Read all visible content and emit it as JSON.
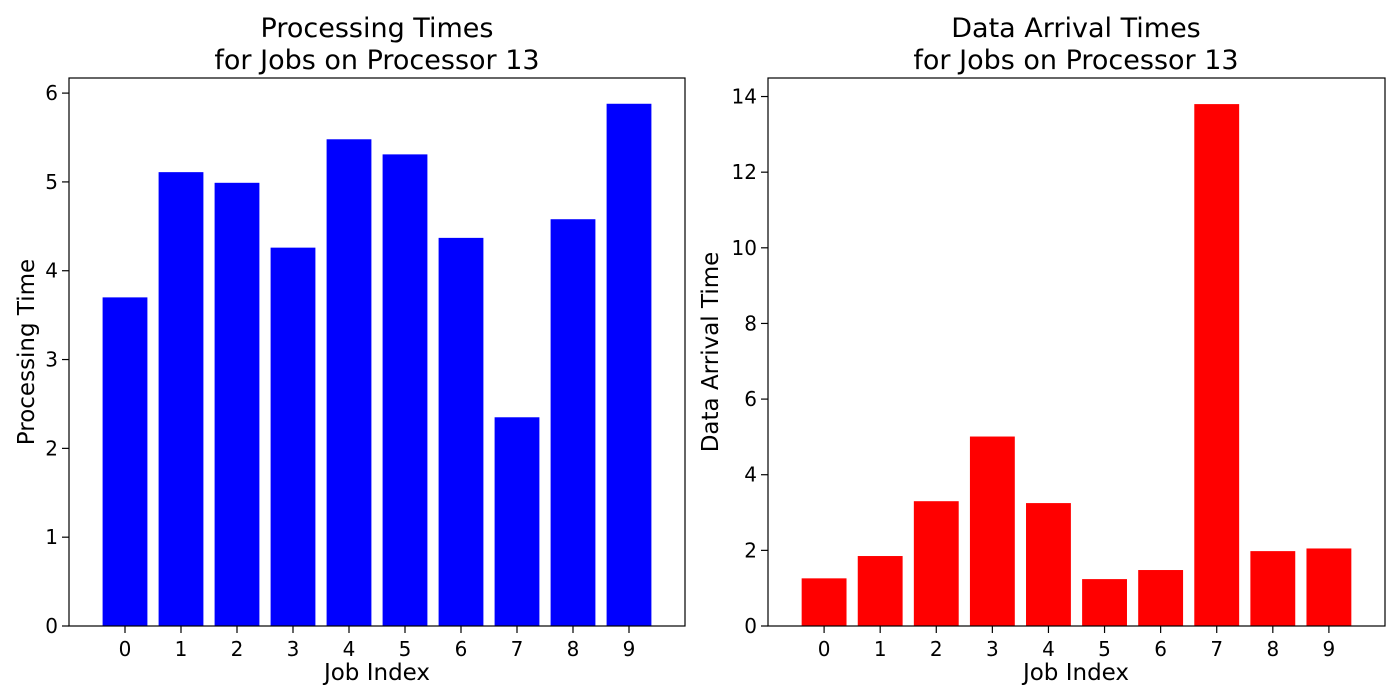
{
  "chart_data": [
    {
      "type": "bar",
      "title_lines": [
        "Processing Times",
        "for Jobs on Processor 13"
      ],
      "xlabel": "Job Index",
      "ylabel": "Processing Time",
      "categories": [
        "0",
        "1",
        "2",
        "3",
        "4",
        "5",
        "6",
        "7",
        "8",
        "9"
      ],
      "values": [
        3.7,
        5.11,
        4.99,
        4.26,
        5.48,
        5.31,
        4.37,
        2.35,
        4.58,
        5.88
      ],
      "ylim": [
        0,
        6.17
      ],
      "yticks": [
        0,
        1,
        2,
        3,
        4,
        5,
        6
      ],
      "color": "#0000ff",
      "grid": false
    },
    {
      "type": "bar",
      "title_lines": [
        "Data Arrival Times",
        "for Jobs on Processor 13"
      ],
      "xlabel": "Job Index",
      "ylabel": "Data Arrival Time",
      "categories": [
        "0",
        "1",
        "2",
        "3",
        "4",
        "5",
        "6",
        "7",
        "8",
        "9"
      ],
      "values": [
        1.26,
        1.85,
        3.3,
        5.01,
        3.25,
        1.24,
        1.48,
        13.8,
        1.98,
        2.05
      ],
      "ylim": [
        0,
        14.49
      ],
      "yticks": [
        0,
        2,
        4,
        6,
        8,
        10,
        12,
        14
      ],
      "color": "#ff0000",
      "grid": false
    }
  ]
}
